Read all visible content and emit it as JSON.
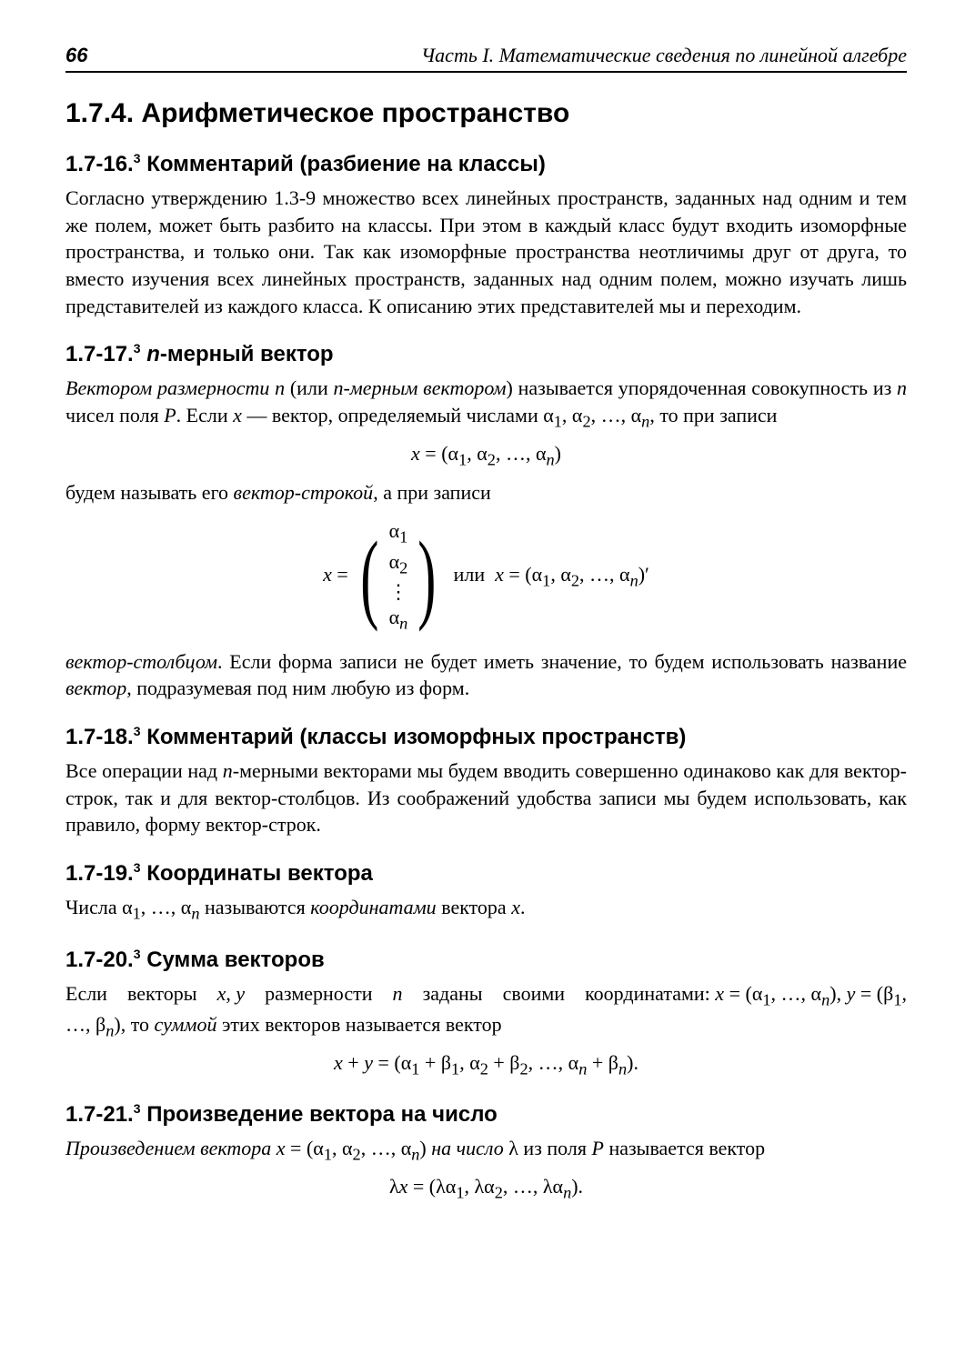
{
  "header": {
    "page_number": "66",
    "running_title": "Часть I. Математические сведения по линейной алгебре"
  },
  "section": {
    "number": "1.7.4.",
    "title": "Арифметическое пространство"
  },
  "blocks": [
    {
      "heading_number": "1.7-16.",
      "heading_sup": "3",
      "heading_title": "Комментарий (разбиение на классы)",
      "body_html": "Согласно утверждению 1.3-9 множество всех линейных пространств, заданных над одним и тем же полем, может быть разбито на классы. При этом в каждый класс будут входить изоморфные пространства, и только они. Так как изоморфные пространства неотличимы друг от друга, то вместо изучения всех линейных пространств, заданных над одним полем, можно изучать лишь представителей из каждого класса. К&nbsp;описанию этих представителей мы и переходим."
    },
    {
      "heading_number": "1.7-17.",
      "heading_sup": "3",
      "heading_title": "<i>n</i>-мерный вектор",
      "body_html": "<i>Вектором размерности n</i> (или <i>n-мерным вектором</i>) называется упорядоченная совокупность из <i>n</i> чисел поля <i>P</i>. Если <i>x</i> — вектор, определяемый числами α<sub>1</sub>, α<sub>2</sub>, …, α<sub><i>n</i></sub>, то при записи",
      "formula1": "<i>x</i> = (α<sub>1</sub>, α<sub>2</sub>, …, α<sub><i>n</i></sub>)",
      "body2_html": "будем называть его <i>вектор-строкой</i>, а при записи",
      "col_formula_lhs": "<i>x</i> = ",
      "col_entries": [
        "α<sub>1</sub>",
        "α<sub>2</sub>",
        "⋮",
        "α<sub><i>n</i></sub>"
      ],
      "col_formula_rhs": " &nbsp;или&nbsp; <i>x</i> = (α<sub>1</sub>, α<sub>2</sub>, …, α<sub><i>n</i></sub>)′",
      "body3_html": "<i>вектор-столбцом</i>. Если форма записи не будет иметь значение, то будем использовать название <i>вектор</i>, подразумевая под ним любую из форм."
    },
    {
      "heading_number": "1.7-18.",
      "heading_sup": "3",
      "heading_title": "Комментарий (классы изоморфных пространств)",
      "body_html": "Все операции над <i>n</i>-мерными векторами мы будем вводить совершенно одинаково как для вектор-строк, так и для вектор-столбцов. Из соображений удобства записи мы будем использовать, как правило, форму вектор-строк."
    },
    {
      "heading_number": "1.7-19.",
      "heading_sup": "3",
      "heading_title": "Координаты вектора",
      "body_html": "Числа α<sub>1</sub>, …, α<sub><i>n</i></sub> называются <i>координатами</i> вектора <i>x</i>."
    },
    {
      "heading_number": "1.7-20.",
      "heading_sup": "3",
      "heading_title": "Сумма векторов",
      "body_html": "Если &nbsp;&nbsp; векторы &nbsp;&nbsp; <i>x</i>, <i>y</i> &nbsp;&nbsp; размерности &nbsp;&nbsp; <i>n</i> &nbsp;&nbsp; заданы &nbsp;&nbsp; своими &nbsp;&nbsp; координатами: <i>x</i> = (α<sub>1</sub>, …, α<sub><i>n</i></sub>), <i>y</i> = (β<sub>1</sub>, …, β<sub><i>n</i></sub>), то <i>суммой</i> этих векторов называется вектор",
      "formula1": "<i>x</i> + <i>y</i> = (α<sub>1</sub> + β<sub>1</sub>, α<sub>2</sub> + β<sub>2</sub>, …, α<sub><i>n</i></sub> + β<sub><i>n</i></sub>)."
    },
    {
      "heading_number": "1.7-21.",
      "heading_sup": "3",
      "heading_title": "Произведение вектора на число",
      "body_html": "<i>Произведением вектора x</i> = (α<sub>1</sub>, α<sub>2</sub>, …, α<sub><i>n</i></sub>) <i>на число</i> λ из поля <i>P</i> называется вектор",
      "formula1": "λ<i>x</i> = (λα<sub>1</sub>, λα<sub>2</sub>, …, λα<sub><i>n</i></sub>)."
    }
  ]
}
